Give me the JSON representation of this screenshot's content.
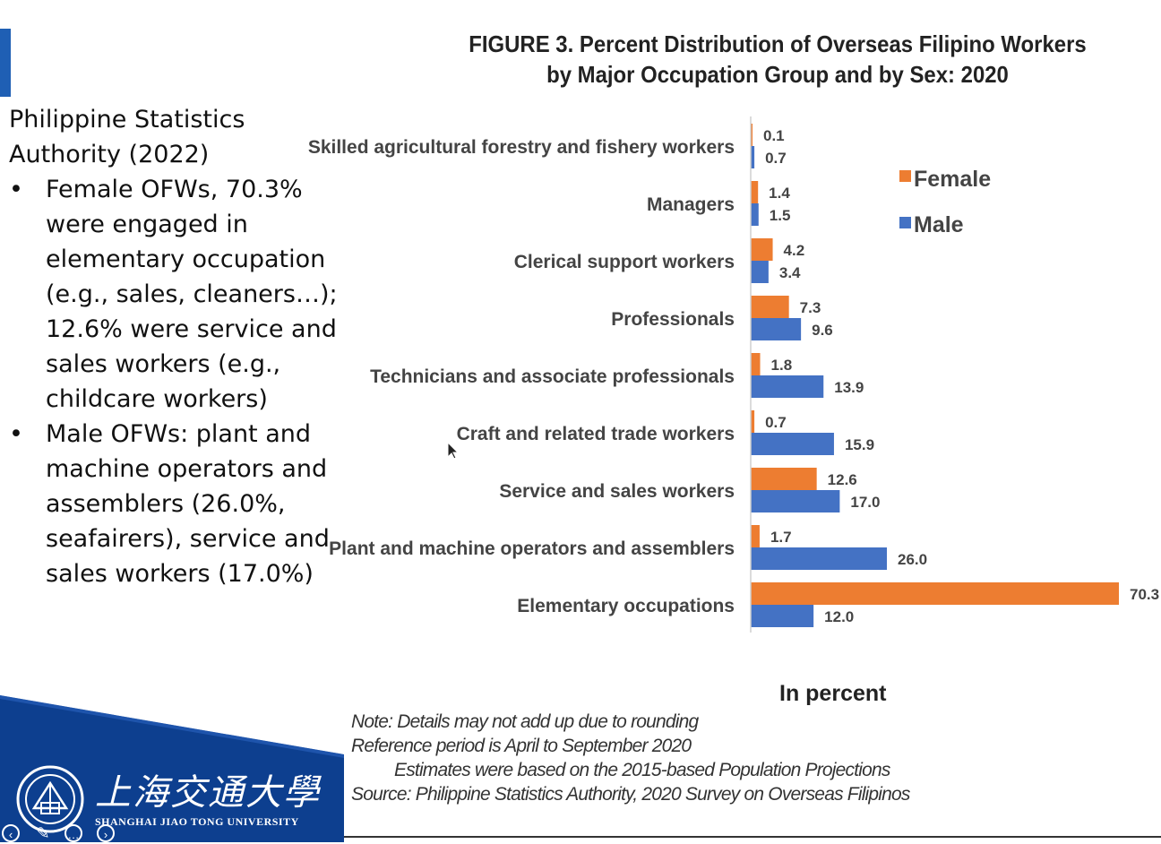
{
  "left_panel": {
    "source": "Philippine Statistics Authority (2022)",
    "bullets": [
      "Female OFWs, 70.3% were engaged in elementary occupation (e.g., sales, cleaners…); 12.6% were service and sales workers (e.g., childcare workers)",
      "Male OFWs: plant and machine operators and assemblers (26.0%, seafairers), service and sales workers (17.0%)"
    ]
  },
  "chart_data": {
    "type": "bar",
    "orientation": "horizontal",
    "title": "FIGURE 3. Percent Distribution of Overseas Filipino Workers by Major Occupation Group and by Sex: 2020",
    "title_lines": [
      "FIGURE 3. Percent Distribution of Overseas Filipino Workers",
      "by Major Occupation Group and by Sex: 2020"
    ],
    "unit_label": "In percent",
    "categories": [
      "Skilled agricultural forestry and fishery workers",
      "Managers",
      "Clerical support workers",
      "Professionals",
      "Technicians and associate professionals",
      "Craft and related trade workers",
      "Service and sales workers",
      "Plant and machine operators and assemblers",
      "Elementary occupations"
    ],
    "series": [
      {
        "name": "Female",
        "color": "#ed7d31",
        "values": [
          0.1,
          1.4,
          4.2,
          7.3,
          1.8,
          0.7,
          12.6,
          1.7,
          70.3
        ]
      },
      {
        "name": "Male",
        "color": "#4472c4",
        "values": [
          0.7,
          1.5,
          3.4,
          9.6,
          13.9,
          15.9,
          17.0,
          26.0,
          12.0
        ]
      }
    ],
    "value_labels": {
      "Female": [
        "0.1",
        "1.4",
        "4.2",
        "7.3",
        "1.8",
        "0.7",
        "12.6",
        "1.7",
        "70.3"
      ],
      "Male": [
        "0.7",
        "1.5",
        "3.4",
        "9.6",
        "13.9",
        "15.9",
        "17.0",
        "26.0",
        "12.0"
      ]
    },
    "legend_position": "top-right",
    "grid": false,
    "xlim": [
      0,
      70.3
    ]
  },
  "notes": [
    "Note: Details may not add up due to rounding",
    "Reference period is April to September 2020",
    "Estimates were based on the 2015-based Population Projections",
    "Source: Philippine Statistics Authority, 2020 Survey on Overseas Filipinos"
  ],
  "footer": {
    "university_cn": "上海交通大學",
    "university_en": "SHANGHAI JIAO TONG UNIVERSITY",
    "band_color": "#0d3f8f"
  },
  "icons": [
    "back-icon",
    "pointer-icon",
    "more-icon",
    "forward-icon",
    "cursor-icon",
    "sjtu-seal-icon"
  ]
}
